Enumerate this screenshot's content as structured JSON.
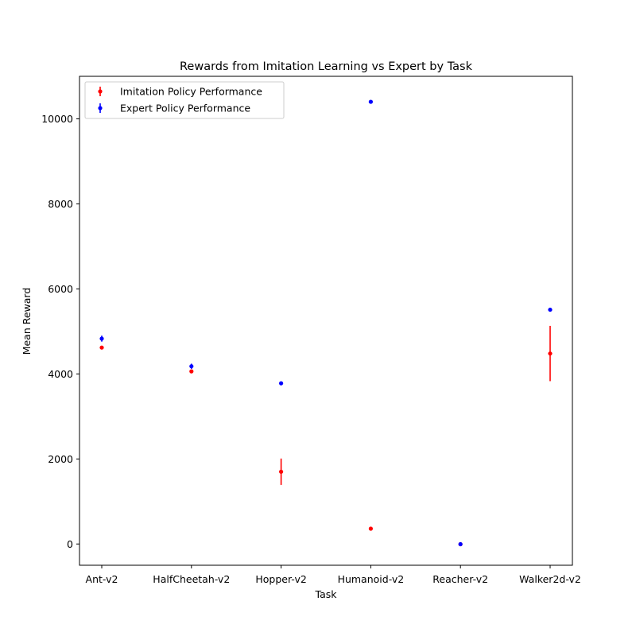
{
  "chart_data": {
    "type": "scatter",
    "title": "Rewards from Imitation Learning vs Expert by Task",
    "xlabel": "Task",
    "ylabel": "Mean Reward",
    "categories": [
      "Ant-v2",
      "HalfCheetah-v2",
      "Hopper-v2",
      "Humanoid-v2",
      "Reacher-v2",
      "Walker2d-v2"
    ],
    "ylim": [
      -500,
      11000
    ],
    "yticks": [
      0,
      2000,
      4000,
      6000,
      8000,
      10000
    ],
    "legend_position": "top-left",
    "grid": false,
    "series": [
      {
        "name": "Imitation Policy Performance",
        "color": "#ff0000",
        "values": [
          4620,
          4060,
          1700,
          360,
          -5,
          4480
        ],
        "errors": [
          30,
          30,
          310,
          25,
          3,
          650
        ]
      },
      {
        "name": "Expert Policy Performance",
        "color": "#0000ff",
        "values": [
          4830,
          4180,
          3780,
          10400,
          -4,
          5510
        ],
        "errors": [
          70,
          60,
          10,
          40,
          3,
          35
        ]
      }
    ]
  }
}
